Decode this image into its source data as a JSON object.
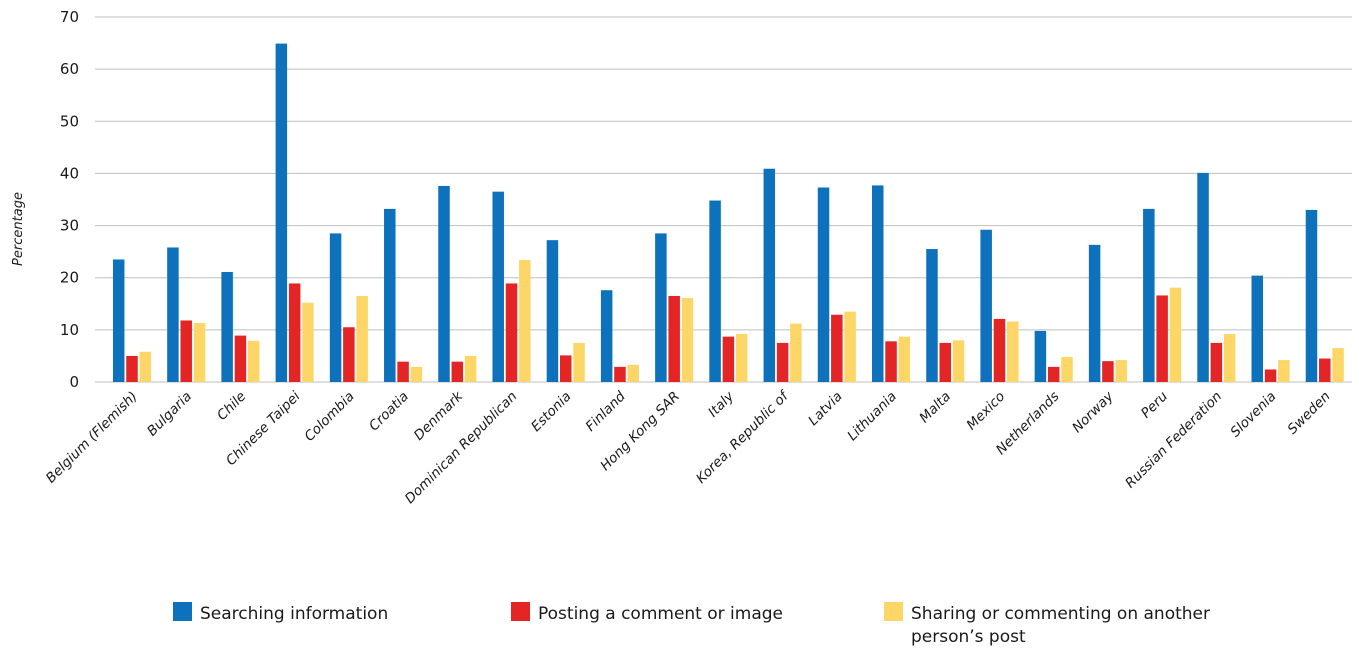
{
  "chart_data": {
    "type": "bar",
    "ylabel": "Percentage",
    "xlabel": "",
    "ylim": [
      0,
      70
    ],
    "yticks": [
      0,
      10,
      20,
      30,
      40,
      50,
      60,
      70
    ],
    "grid": true,
    "legend_position": "bottom",
    "categories": [
      "Belgium (Flemish)",
      "Bulgaria",
      "Chile",
      "Chinese Taipei",
      "Colombia",
      "Croatia",
      "Denmark",
      "Dominican Republican",
      "Estonia",
      "Finland",
      "Hong Kong SAR",
      "Italy",
      "Korea, Republic of",
      "Latvia",
      "Lithuania",
      "Malta",
      "Mexico",
      "Netherlands",
      "Norway",
      "Peru",
      "Russian Federation",
      "Slovenia",
      "Sweden"
    ],
    "series": [
      {
        "name": "Searching information",
        "color": "#0d72bb",
        "values": [
          23.5,
          25.8,
          21.1,
          64.9,
          28.5,
          33.2,
          37.6,
          36.5,
          27.2,
          17.6,
          28.5,
          34.8,
          40.9,
          37.3,
          37.7,
          25.5,
          29.2,
          9.8,
          26.3,
          33.2,
          40.1,
          20.4,
          33.0
        ]
      },
      {
        "name": "Posting a comment or image",
        "color": "#e32526",
        "values": [
          5.0,
          11.8,
          8.9,
          18.9,
          10.5,
          3.9,
          3.9,
          18.9,
          5.1,
          2.9,
          16.5,
          8.7,
          7.5,
          12.9,
          7.8,
          7.5,
          12.1,
          2.9,
          4.0,
          16.6,
          7.5,
          2.4,
          4.5
        ]
      },
      {
        "name": "Sharing or commenting on another person’s post",
        "legend_lines": [
          "Sharing or commenting on another",
          "person’s post"
        ],
        "color": "#fcd768",
        "values": [
          5.8,
          11.3,
          7.9,
          15.2,
          16.5,
          2.9,
          5.0,
          23.4,
          7.5,
          3.3,
          16.1,
          9.2,
          11.2,
          13.5,
          8.7,
          8.0,
          11.6,
          4.8,
          4.2,
          18.1,
          9.2,
          4.2,
          6.5
        ]
      }
    ]
  }
}
